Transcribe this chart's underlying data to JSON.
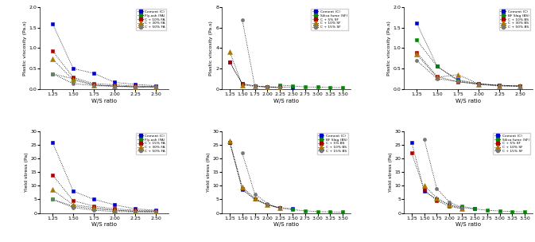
{
  "plots": [
    {
      "xlabel": "W/S ratio",
      "ylabel": "Plastic viscosity (Pa.s)",
      "ylim": [
        0,
        2.0
      ],
      "yticks": [
        0.0,
        0.5,
        1.0,
        1.5,
        2.0
      ],
      "xlim": [
        1.1,
        2.65
      ],
      "xticks": [
        1.25,
        1.5,
        1.75,
        2.0,
        2.25,
        2.5
      ],
      "series": [
        {
          "label": "Cement (C)",
          "color": "#0000CC",
          "marker": "s",
          "x": [
            1.25,
            1.5,
            1.75,
            2.0,
            2.25,
            2.5
          ],
          "y": [
            1.6,
            0.5,
            0.38,
            0.16,
            0.11,
            0.08
          ]
        },
        {
          "label": "Fly-ash (FA)",
          "color": "#008800",
          "marker": "s",
          "x": [
            1.25,
            1.5,
            1.75,
            2.0,
            2.25,
            2.5
          ],
          "y": [
            0.37,
            0.25,
            0.1,
            0.07,
            0.05,
            0.05
          ]
        },
        {
          "label": "C + 10% FA",
          "color": "#AA0000",
          "marker": "s",
          "x": [
            1.25,
            1.5,
            1.75,
            2.0,
            2.25,
            2.5
          ],
          "y": [
            0.93,
            0.28,
            0.13,
            0.1,
            0.07,
            0.06
          ]
        },
        {
          "label": "C + 30% FA",
          "color": "#AA7700",
          "marker": "^",
          "x": [
            1.25,
            1.5,
            1.75,
            2.0,
            2.25,
            2.5
          ],
          "y": [
            0.73,
            0.22,
            0.09,
            0.07,
            0.05,
            0.05
          ]
        },
        {
          "label": "C + 50% FA",
          "color": "#777777",
          "marker": "o",
          "x": [
            1.25,
            1.5,
            1.75,
            2.0,
            2.25,
            2.5
          ],
          "y": [
            0.37,
            0.13,
            0.08,
            0.06,
            0.05,
            0.05
          ]
        }
      ]
    },
    {
      "xlabel": "W/S ratio",
      "ylabel": "Plastic viscosity (Pa.s)",
      "ylim": [
        0,
        8
      ],
      "yticks": [
        0,
        2,
        4,
        6,
        8
      ],
      "xlim": [
        1.1,
        3.65
      ],
      "xticks": [
        1.25,
        1.5,
        1.75,
        2.0,
        2.25,
        2.5,
        2.75,
        3.0,
        3.25,
        3.5
      ],
      "series": [
        {
          "label": "Cement (C)",
          "color": "#0000CC",
          "marker": "s",
          "x": [
            1.25,
            1.5,
            1.75,
            2.0,
            2.25,
            2.5
          ],
          "y": [
            2.6,
            0.5,
            0.3,
            0.2,
            0.18,
            0.15
          ]
        },
        {
          "label": "Silica fume (SF)",
          "color": "#008800",
          "marker": "s",
          "x": [
            2.25,
            2.5,
            2.75,
            3.0,
            3.25,
            3.5
          ],
          "y": [
            0.38,
            0.28,
            0.2,
            0.17,
            0.14,
            0.12
          ]
        },
        {
          "label": "C + 5% SF",
          "color": "#AA0000",
          "marker": "s",
          "x": [
            1.25,
            1.5,
            1.75,
            2.0,
            2.25
          ],
          "y": [
            2.65,
            0.5,
            0.28,
            0.18,
            0.14
          ]
        },
        {
          "label": "C + 10% SF",
          "color": "#AA7700",
          "marker": "^",
          "x": [
            1.25,
            1.5,
            1.75,
            2.0,
            2.25
          ],
          "y": [
            3.65,
            0.38,
            0.25,
            0.17,
            0.13
          ]
        },
        {
          "label": "C + 15% SF",
          "color": "#777777",
          "marker": "o",
          "x": [
            1.5,
            1.75,
            2.0,
            2.25
          ],
          "y": [
            6.8,
            0.28,
            0.2,
            0.13
          ]
        }
      ]
    },
    {
      "xlabel": "W/S ratio",
      "ylabel": "Plastic viscosity (Pa.s)",
      "ylim": [
        0,
        2.0
      ],
      "yticks": [
        0.0,
        0.5,
        1.0,
        1.5,
        2.0
      ],
      "xlim": [
        1.1,
        2.65
      ],
      "xticks": [
        1.25,
        1.5,
        1.75,
        2.0,
        2.25,
        2.5
      ],
      "series": [
        {
          "label": "Cement (C)",
          "color": "#0000CC",
          "marker": "s",
          "x": [
            1.25,
            1.5,
            1.75,
            2.0,
            2.25,
            2.5
          ],
          "y": [
            1.62,
            0.55,
            0.22,
            0.13,
            0.09,
            0.07
          ]
        },
        {
          "label": "BF Slag (BS)",
          "color": "#008800",
          "marker": "s",
          "x": [
            1.25,
            1.5,
            1.75,
            2.0,
            2.25,
            2.5
          ],
          "y": [
            1.2,
            0.55,
            0.2,
            0.12,
            0.09,
            0.07
          ]
        },
        {
          "label": "C + 10% BS",
          "color": "#AA0000",
          "marker": "s",
          "x": [
            1.25,
            1.5,
            1.75,
            2.0,
            2.25,
            2.5
          ],
          "y": [
            0.9,
            0.3,
            0.17,
            0.12,
            0.08,
            0.07
          ]
        },
        {
          "label": "C + 30% BS",
          "color": "#AA7700",
          "marker": "^",
          "x": [
            1.25,
            1.5,
            1.75,
            2.0,
            2.25,
            2.5
          ],
          "y": [
            0.85,
            0.28,
            0.35,
            0.12,
            0.08,
            0.07
          ]
        },
        {
          "label": "C + 50% BS",
          "color": "#777777",
          "marker": "o",
          "x": [
            1.25,
            1.5,
            1.75,
            2.0,
            2.25,
            2.5
          ],
          "y": [
            0.7,
            0.25,
            0.18,
            0.11,
            0.07,
            0.06
          ]
        }
      ]
    },
    {
      "xlabel": "W/S ratio",
      "ylabel": "Yield stress (Pa)",
      "ylim": [
        0,
        30
      ],
      "yticks": [
        0,
        5,
        10,
        15,
        20,
        25,
        30
      ],
      "xlim": [
        1.1,
        2.65
      ],
      "xticks": [
        1.25,
        1.5,
        1.75,
        2.0,
        2.25,
        2.5
      ],
      "series": [
        {
          "label": "Cement (C)",
          "color": "#0000CC",
          "marker": "s",
          "x": [
            1.25,
            1.5,
            1.75,
            2.0,
            2.25,
            2.5
          ],
          "y": [
            26.0,
            8.0,
            5.0,
            3.0,
            1.5,
            1.0
          ]
        },
        {
          "label": "Fly-ash (FA)",
          "color": "#008800",
          "marker": "s",
          "x": [
            1.25,
            1.5,
            1.75,
            2.0,
            2.25,
            2.5
          ],
          "y": [
            5.0,
            2.5,
            1.5,
            1.0,
            0.5,
            0.5
          ]
        },
        {
          "label": "C + 15% FA",
          "color": "#AA0000",
          "marker": "s",
          "x": [
            1.25,
            1.5,
            1.75,
            2.0,
            2.25,
            2.5
          ],
          "y": [
            14.0,
            4.5,
            2.5,
            1.5,
            1.0,
            0.8
          ]
        },
        {
          "label": "C + 30% FA",
          "color": "#AA7700",
          "marker": "^",
          "x": [
            1.25,
            1.5,
            1.75,
            2.0,
            2.25,
            2.5
          ],
          "y": [
            8.5,
            3.0,
            2.0,
            1.0,
            0.7,
            0.5
          ]
        },
        {
          "label": "C + 50% FA",
          "color": "#777777",
          "marker": "o",
          "x": [
            1.25,
            1.5,
            1.75,
            2.0,
            2.25,
            2.5
          ],
          "y": [
            5.0,
            2.0,
            1.0,
            0.5,
            0.4,
            0.3
          ]
        }
      ]
    },
    {
      "xlabel": "W/S ratio",
      "ylabel": "Yield stress (Pa)",
      "ylim": [
        0,
        30
      ],
      "yticks": [
        0,
        5,
        10,
        15,
        20,
        25,
        30
      ],
      "xlim": [
        1.1,
        3.65
      ],
      "xticks": [
        1.25,
        1.5,
        1.75,
        2.0,
        2.25,
        2.5,
        2.75,
        3.0,
        3.25,
        3.5
      ],
      "series": [
        {
          "label": "Cement (C)",
          "color": "#0000CC",
          "marker": "s",
          "x": [
            1.25,
            1.5,
            1.75,
            2.0,
            2.25,
            2.5
          ],
          "y": [
            26.0,
            8.5,
            5.0,
            3.0,
            2.0,
            1.5
          ]
        },
        {
          "label": "BF Slag (BS)",
          "color": "#008800",
          "marker": "s",
          "x": [
            2.25,
            2.5,
            2.75,
            3.0,
            3.25,
            3.5
          ],
          "y": [
            1.8,
            1.2,
            0.8,
            0.5,
            0.4,
            0.3
          ]
        },
        {
          "label": "C + 5% BS",
          "color": "#AA0000",
          "marker": "s",
          "x": [
            1.25,
            1.5,
            1.75,
            2.0,
            2.25
          ],
          "y": [
            26.0,
            9.0,
            5.0,
            3.0,
            1.8
          ]
        },
        {
          "label": "C + 10% BS",
          "color": "#AA7700",
          "marker": "^",
          "x": [
            1.25,
            1.5,
            1.75,
            2.0,
            2.25
          ],
          "y": [
            26.5,
            9.5,
            5.5,
            3.0,
            1.8
          ]
        },
        {
          "label": "C + 15% BS",
          "color": "#777777",
          "marker": "o",
          "x": [
            1.5,
            1.75,
            2.0,
            2.25
          ],
          "y": [
            22.0,
            7.0,
            3.5,
            1.5
          ]
        }
      ]
    },
    {
      "xlabel": "W/S ratio",
      "ylabel": "Yield stress (Pa)",
      "ylim": [
        0,
        30
      ],
      "yticks": [
        0,
        5,
        10,
        15,
        20,
        25,
        30
      ],
      "xlim": [
        1.1,
        3.65
      ],
      "xticks": [
        1.25,
        1.5,
        1.75,
        2.0,
        2.25,
        2.5,
        2.75,
        3.0,
        3.25,
        3.5
      ],
      "series": [
        {
          "label": "Cement (C)",
          "color": "#0000CC",
          "marker": "s",
          "x": [
            1.25,
            1.5,
            1.75,
            2.0,
            2.25,
            2.5
          ],
          "y": [
            26.0,
            8.0,
            5.0,
            3.0,
            2.0,
            1.5
          ]
        },
        {
          "label": "Silica fume (SF)",
          "color": "#008800",
          "marker": "s",
          "x": [
            2.25,
            2.5,
            2.75,
            3.0,
            3.25,
            3.5
          ],
          "y": [
            2.5,
            1.5,
            1.0,
            0.7,
            0.5,
            0.4
          ]
        },
        {
          "label": "C + 5% SF",
          "color": "#AA0000",
          "marker": "s",
          "x": [
            1.25,
            1.5,
            1.75,
            2.0,
            2.25
          ],
          "y": [
            22.0,
            8.5,
            4.5,
            2.5,
            1.5
          ]
        },
        {
          "label": "C + 10% SF",
          "color": "#AA7700",
          "marker": "^",
          "x": [
            1.5,
            1.75,
            2.0,
            2.25
          ],
          "y": [
            10.0,
            5.5,
            3.0,
            1.5
          ]
        },
        {
          "label": "C + 15% SF",
          "color": "#777777",
          "marker": "o",
          "x": [
            1.5,
            1.75,
            2.0,
            2.25
          ],
          "y": [
            27.0,
            9.0,
            4.0,
            2.0
          ]
        }
      ]
    }
  ]
}
